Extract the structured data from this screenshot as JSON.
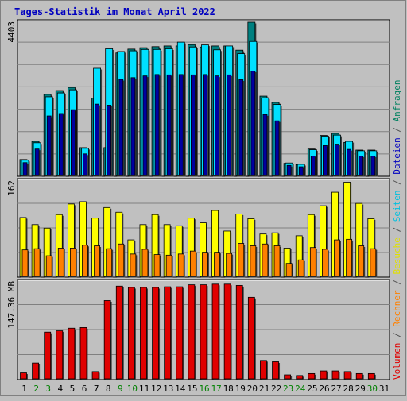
{
  "title": "Tages-Statistik im Monat April 2022",
  "side_label": {
    "parts": [
      {
        "text": "Volumen",
        "color": "#e00000"
      },
      {
        "text": " / ",
        "color": "#505050"
      },
      {
        "text": "Rechner",
        "color": "#ff8000"
      },
      {
        "text": " / ",
        "color": "#505050"
      },
      {
        "text": "Besuche",
        "color": "#e0e000"
      },
      {
        "text": " / ",
        "color": "#505050"
      },
      {
        "text": "Seiten",
        "color": "#00c0e0"
      },
      {
        "text": " / ",
        "color": "#505050"
      },
      {
        "text": "Dateien",
        "color": "#0000c0"
      },
      {
        "text": " / ",
        "color": "#505050"
      },
      {
        "text": "Anfragen",
        "color": "#008060"
      }
    ]
  },
  "colors": {
    "background": "#c0c0c0",
    "title": "#0000c0",
    "anfragen": "#008080",
    "seiten": "#00e0ff",
    "dateien": "#0000a0",
    "besuche": "#ffff00",
    "rechner": "#ff8000",
    "volumen": "#e00000",
    "weekday": "#000000",
    "weekend": "#008000"
  },
  "chart_data": [
    {
      "type": "bar",
      "panel": "requests",
      "max_label": "4403",
      "ylim": [
        0,
        4403
      ],
      "categories": [
        "1",
        "2",
        "3",
        "4",
        "5",
        "6",
        "7",
        "8",
        "9",
        "10",
        "11",
        "12",
        "13",
        "14",
        "15",
        "16",
        "17",
        "18",
        "19",
        "20",
        "21",
        "22",
        "23",
        "24",
        "25",
        "26",
        "27",
        "28",
        "29",
        "30",
        "31"
      ],
      "series": [
        {
          "name": "Anfragen",
          "values": [
            460,
            980,
            2330,
            2440,
            2530,
            800,
            2220,
            800,
            3520,
            3630,
            3670,
            3700,
            3720,
            3720,
            3760,
            3690,
            3720,
            3720,
            3600,
            4403,
            2280,
            2100,
            350,
            310,
            760,
            1150,
            1210,
            950,
            730,
            730,
            0
          ]
        },
        {
          "name": "Seiten",
          "values": [
            440,
            940,
            2260,
            2370,
            2460,
            780,
            3080,
            3640,
            3560,
            3580,
            3620,
            3620,
            3640,
            3830,
            3690,
            3750,
            3610,
            3720,
            3500,
            3850,
            2230,
            2040,
            360,
            320,
            740,
            1130,
            1160,
            980,
            710,
            710,
            0
          ]
        },
        {
          "name": "Dateien",
          "values": [
            370,
            760,
            1710,
            1780,
            1890,
            620,
            2050,
            2020,
            2760,
            2810,
            2860,
            2900,
            2890,
            2900,
            2890,
            2900,
            2860,
            2890,
            2750,
            3000,
            1750,
            1570,
            290,
            250,
            560,
            860,
            900,
            750,
            560,
            560,
            0
          ]
        }
      ]
    },
    {
      "type": "bar",
      "panel": "visits",
      "max_label": "162",
      "ylim": [
        0,
        162
      ],
      "categories": [
        "1",
        "2",
        "3",
        "4",
        "5",
        "6",
        "7",
        "8",
        "9",
        "10",
        "11",
        "12",
        "13",
        "14",
        "15",
        "16",
        "17",
        "18",
        "19",
        "20",
        "21",
        "22",
        "23",
        "24",
        "25",
        "26",
        "27",
        "28",
        "29",
        "30",
        "31"
      ],
      "series": [
        {
          "name": "Besuche",
          "values": [
            100,
            88,
            82,
            105,
            123,
            127,
            99,
            117,
            109,
            62,
            88,
            105,
            88,
            86,
            99,
            91,
            112,
            77,
            106,
            98,
            72,
            74,
            48,
            69,
            105,
            120,
            143,
            160,
            124,
            98,
            0
          ]
        },
        {
          "name": "Rechner",
          "values": [
            45,
            47,
            35,
            48,
            48,
            53,
            52,
            47,
            55,
            38,
            46,
            37,
            36,
            38,
            43,
            41,
            41,
            39,
            56,
            52,
            55,
            52,
            22,
            28,
            49,
            46,
            62,
            63,
            52,
            47,
            0
          ]
        }
      ]
    },
    {
      "type": "bar",
      "panel": "volume",
      "max_label": "147.36 MB",
      "ylim": [
        0,
        147.36
      ],
      "categories": [
        "1",
        "2",
        "3",
        "4",
        "5",
        "6",
        "7",
        "8",
        "9",
        "10",
        "11",
        "12",
        "13",
        "14",
        "15",
        "16",
        "17",
        "18",
        "19",
        "20",
        "21",
        "22",
        "23",
        "24",
        "25",
        "26",
        "27",
        "28",
        "29",
        "30",
        "31"
      ],
      "series": [
        {
          "name": "Volumen",
          "values": [
            9,
            24,
            71,
            73,
            77,
            78,
            11,
            119,
            141,
            139,
            139,
            139,
            140,
            140,
            143,
            143,
            144,
            144,
            142,
            124,
            28,
            26,
            6,
            5,
            8,
            12,
            12,
            11,
            8,
            8,
            0
          ]
        }
      ]
    }
  ]
}
